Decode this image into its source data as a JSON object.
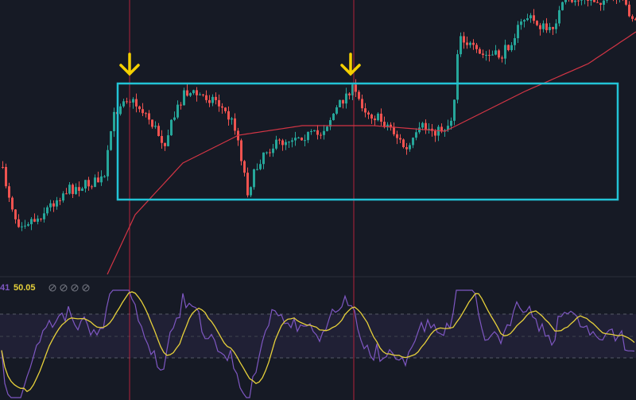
{
  "indicator": {
    "rsi_value": "41",
    "rsi_ma_value": "50.05"
  }
}
